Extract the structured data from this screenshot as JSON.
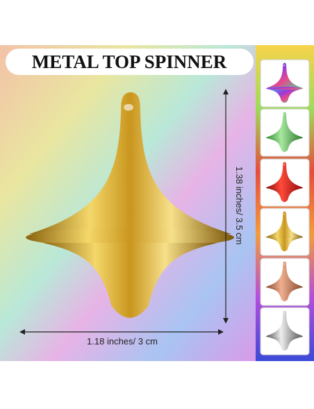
{
  "header": {
    "title": "METAL TOP SPINNER"
  },
  "dimensions": {
    "height": "1.38 inches/ 3.5 cm",
    "width": "1.18 inches/ 3 cm"
  }
}
